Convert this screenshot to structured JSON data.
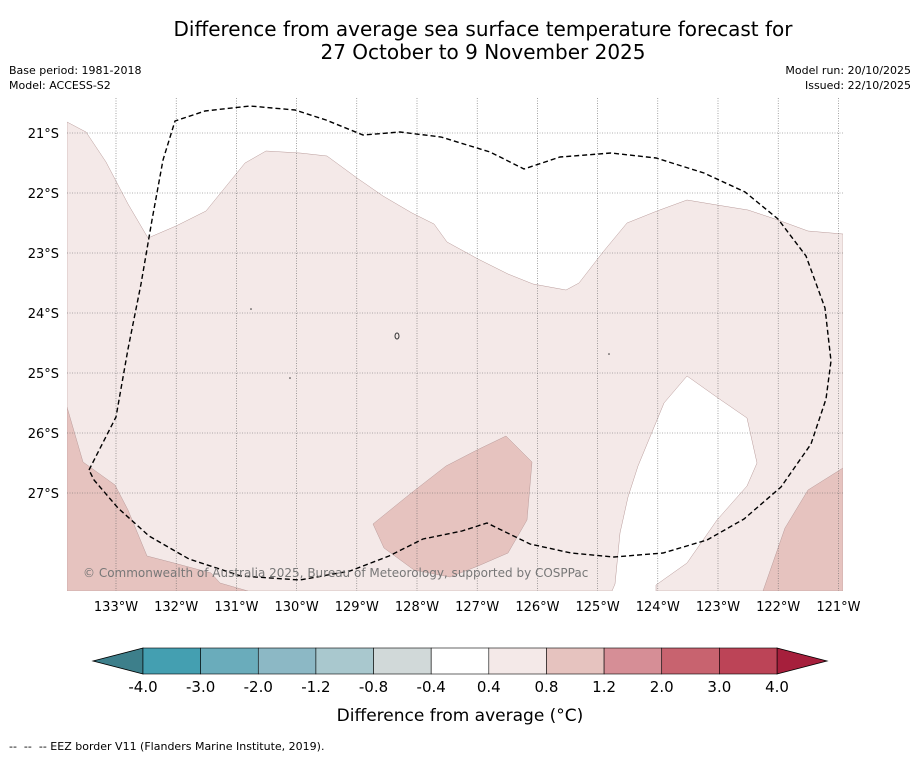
{
  "title_line1": "Difference from average sea surface temperature forecast for",
  "title_line2": "27 October to 9 November 2025",
  "base_period": "Base period: 1981-2018",
  "model": "Model: ACCESS-S2",
  "model_run": "Model run: 20/10/2025",
  "issued": "Issued: 22/10/2025",
  "copyright": "© Commonwealth of Australia 2025, Bureau of Meteorology, supported by COSPPac",
  "lat_labels": [
    "21°S",
    "22°S",
    "23°S",
    "24°S",
    "25°S",
    "26°S",
    "27°S"
  ],
  "lon_labels": [
    "133°W",
    "132°W",
    "131°W",
    "130°W",
    "129°W",
    "128°W",
    "127°W",
    "126°W",
    "125°W",
    "124°W",
    "123°W",
    "122°W",
    "121°W"
  ],
  "colorbar": {
    "ticks": [
      "-4.0",
      "-3.0",
      "-2.0",
      "-1.2",
      "-0.8",
      "-0.4",
      "0.4",
      "0.8",
      "1.2",
      "2.0",
      "3.0",
      "4.0"
    ],
    "colors": [
      "#449fb1",
      "#6aacbb",
      "#8cb8c5",
      "#a9c8ce",
      "#d1d9d9",
      "#ffffff",
      "#f4e9e8",
      "#e6c3bf",
      "#d68e96",
      "#c8636f",
      "#bc4457"
    ],
    "under_color": "#3d7f8b",
    "over_color": "#a61f3c",
    "label": "Difference from average (°C)"
  },
  "legend_colors": {
    "warm_0_4_0_8": "#f4e9e8",
    "warm_0_8_1_2": "#e6c3bf",
    "neutral": "#ffffff"
  },
  "footnote": "--  --  -- EEZ border V11 (Flanders Marine Institute, 2019)."
}
